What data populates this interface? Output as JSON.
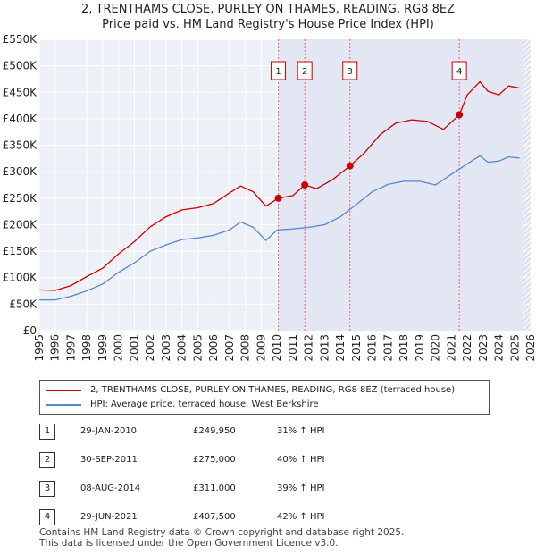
{
  "chart_data": {
    "type": "line",
    "title": "2, TRENTHAMS CLOSE, PURLEY ON THAMES, READING, RG8 8EZ",
    "subtitle": "Price paid vs. HM Land Registry's House Price Index (HPI)",
    "xlim": [
      1995,
      2026
    ],
    "ylim": [
      0,
      550000
    ],
    "y_ticks": [
      0,
      50000,
      100000,
      150000,
      200000,
      250000,
      300000,
      350000,
      400000,
      450000,
      500000,
      550000
    ],
    "y_tick_labels": [
      "£0",
      "£50K",
      "£100K",
      "£150K",
      "£200K",
      "£250K",
      "£300K",
      "£350K",
      "£400K",
      "£450K",
      "£500K",
      "£550K"
    ],
    "x_ticks": [
      1995,
      1996,
      1997,
      1998,
      1999,
      2000,
      2001,
      2002,
      2003,
      2004,
      2005,
      2006,
      2007,
      2008,
      2009,
      2010,
      2011,
      2012,
      2013,
      2014,
      2015,
      2016,
      2017,
      2018,
      2019,
      2020,
      2021,
      2022,
      2023,
      2024,
      2025,
      2026
    ],
    "grid": true,
    "series": [
      {
        "name": "2, TRENTHAMS CLOSE, PURLEY ON THAMES, READING, RG8 8EZ (terraced house)",
        "color": "#cc0000",
        "x": [
          1995,
          1996,
          1997,
          1998,
          1999,
          2000,
          2001,
          2002,
          2003,
          2004,
          2005,
          2006,
          2007,
          2007.7,
          2008.5,
          2009.3,
          2010.08,
          2011,
          2011.75,
          2012.5,
          2013.5,
          2014.6,
          2015.5,
          2016.5,
          2017.5,
          2018.5,
          2019.5,
          2020.5,
          2021.5,
          2022,
          2022.8,
          2023.3,
          2024,
          2024.6,
          2025.3
        ],
        "values": [
          77000,
          76000,
          85000,
          102000,
          118000,
          145000,
          168000,
          196000,
          215000,
          228000,
          232000,
          240000,
          260000,
          273000,
          262000,
          235000,
          249950,
          255000,
          275000,
          268000,
          285000,
          311000,
          335000,
          370000,
          392000,
          398000,
          395000,
          380000,
          407500,
          445000,
          470000,
          452000,
          445000,
          462000,
          458000
        ]
      },
      {
        "name": "HPI: Average price, terraced house, West Berkshire",
        "color": "#5588cc",
        "x": [
          1995,
          1996,
          1997,
          1998,
          1999,
          2000,
          2001,
          2002,
          2003,
          2004,
          2005,
          2006,
          2007,
          2007.7,
          2008.5,
          2009.3,
          2010,
          2011,
          2012,
          2013,
          2014,
          2015,
          2016,
          2017,
          2018,
          2019,
          2020,
          2021,
          2022,
          2022.8,
          2023.3,
          2024,
          2024.6,
          2025.3
        ],
        "values": [
          58000,
          58000,
          65000,
          75000,
          88000,
          110000,
          128000,
          150000,
          162000,
          172000,
          175000,
          180000,
          190000,
          205000,
          195000,
          170000,
          190000,
          192000,
          195000,
          200000,
          215000,
          238000,
          262000,
          276000,
          282000,
          282000,
          275000,
          295000,
          315000,
          330000,
          318000,
          320000,
          328000,
          326000
        ]
      }
    ],
    "sales": [
      {
        "label": "1",
        "x": 2010.08,
        "price": 249950
      },
      {
        "label": "2",
        "x": 2011.75,
        "price": 275000
      },
      {
        "label": "3",
        "x": 2014.6,
        "price": 311000
      },
      {
        "label": "4",
        "x": 2021.5,
        "price": 407500
      }
    ],
    "hatch_from_year": 2025.5
  },
  "header": {
    "title": "2, TRENTHAMS CLOSE, PURLEY ON THAMES, READING, RG8 8EZ",
    "subtitle": "Price paid vs. HM Land Registry's House Price Index (HPI)"
  },
  "legend": {
    "property": "2, TRENTHAMS CLOSE, PURLEY ON THAMES, READING, RG8 8EZ (terraced house)",
    "hpi": "HPI: Average price, terraced house, West Berkshire",
    "property_color": "#cc0000",
    "hpi_color": "#5588cc"
  },
  "sales_table": [
    {
      "num": "1",
      "date": "29-JAN-2010",
      "price": "£249,950",
      "hpi": "31% ↑ HPI"
    },
    {
      "num": "2",
      "date": "30-SEP-2011",
      "price": "£275,000",
      "hpi": "40% ↑ HPI"
    },
    {
      "num": "3",
      "date": "08-AUG-2014",
      "price": "£311,000",
      "hpi": "39% ↑ HPI"
    },
    {
      "num": "4",
      "date": "29-JUN-2021",
      "price": "£407,500",
      "hpi": "42% ↑ HPI"
    }
  ],
  "footer": {
    "line1": "Contains HM Land Registry data © Crown copyright and database right 2025.",
    "line2": "This data is licensed under the Open Government Licence v3.0."
  }
}
